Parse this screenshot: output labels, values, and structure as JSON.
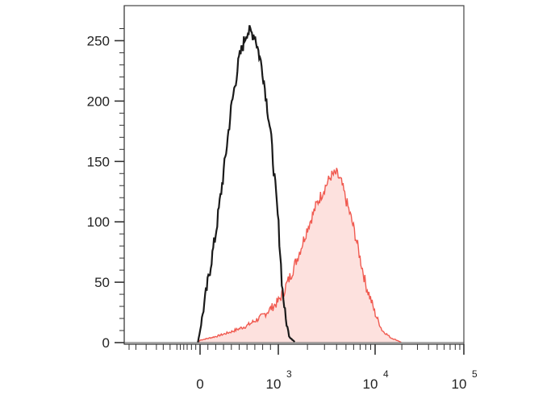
{
  "chart_data": {
    "type": "histogram",
    "title": "",
    "xlabel": "",
    "ylabel": "",
    "ylim": [
      0,
      265
    ],
    "x_scale": "biexponential",
    "x_tick_labels": [
      {
        "base": "0",
        "exp": ""
      },
      {
        "base": "10",
        "exp": "3"
      },
      {
        "base": "10",
        "exp": "4"
      },
      {
        "base": "10",
        "exp": "5"
      }
    ],
    "y_ticks": [
      0,
      50,
      100,
      150,
      200,
      250
    ],
    "y_tick_labels": [
      "0",
      "50",
      "100",
      "150",
      "200",
      "250"
    ],
    "grid": false,
    "legend": "none",
    "series": [
      {
        "style": "black outline",
        "x": [
          -50,
          0,
          100,
          200,
          300,
          400,
          500,
          600,
          700,
          800,
          900,
          1000,
          1100,
          1200,
          1300,
          1500
        ],
        "values": [
          0,
          10,
          50,
          90,
          140,
          195,
          235,
          258,
          255,
          225,
          175,
          100,
          45,
          18,
          5,
          0
        ]
      },
      {
        "style": "red outline, pink fill",
        "x": [
          -50,
          0,
          200,
          400,
          600,
          800,
          1000,
          1250,
          1600,
          2000,
          2500,
          3000,
          3500,
          4000,
          4500,
          5000,
          6000,
          7000,
          8000,
          10000,
          12000,
          15000,
          20000
        ],
        "values": [
          0,
          2,
          5,
          9,
          14,
          22,
          34,
          50,
          72,
          95,
          115,
          128,
          138,
          140,
          132,
          118,
          95,
          70,
          48,
          24,
          10,
          4,
          0
        ]
      }
    ],
    "colors": {
      "axis": "#444444",
      "series1_line": "#1a1a1a",
      "series2_line": "#f05a50",
      "series2_fill": "#fde1de"
    }
  }
}
